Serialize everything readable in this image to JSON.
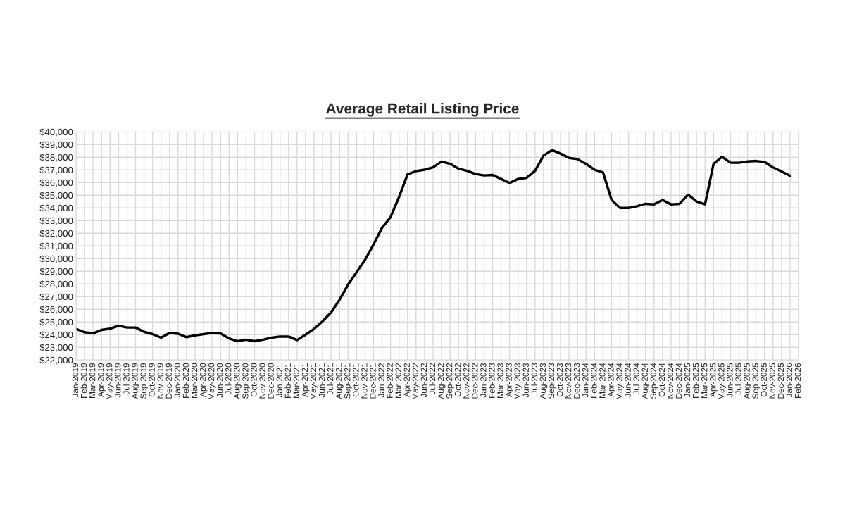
{
  "chart_data": {
    "type": "line",
    "title": "Average Retail Listing Price",
    "categories": [
      "Jan-2019",
      "Feb-2019",
      "Mar-2019",
      "Apr-2019",
      "May-2019",
      "Jun-2019",
      "Jul-2019",
      "Aug-2019",
      "Sep-2019",
      "Oct-2019",
      "Nov-2019",
      "Dec-2019",
      "Jan-2020",
      "Feb-2020",
      "Mar-2020",
      "Apr-2020",
      "May-2020",
      "Jun-2020",
      "Jul-2020",
      "Aug-2020",
      "Sep-2020",
      "Oct-2020",
      "Nov-2020",
      "Dec-2020",
      "Jan-2021",
      "Feb-2021",
      "Mar-2021",
      "Apr-2021",
      "May-2021",
      "Jun-2021",
      "Jul-2021",
      "Aug-2021",
      "Sep-2021",
      "Oct-2021",
      "Nov-2021",
      "Dec-2021",
      "Jan-2022",
      "Feb-2022",
      "Mar-2022",
      "Apr-2022",
      "May-2022",
      "Jun-2022",
      "Jul-2022",
      "Aug-2022",
      "Sep-2022",
      "Oct-2022",
      "Nov-2022",
      "Dec-2022",
      "Jan-2023",
      "Feb-2023",
      "Mar-2023",
      "Apr-2023",
      "May-2023",
      "Jun-2023",
      "Jul-2023",
      "Aug-2023",
      "Sep-2023",
      "Oct-2023",
      "Nov-2023",
      "Dec-2023",
      "Jan-2024",
      "Feb-2024",
      "Mar-2024",
      "Apr-2024",
      "May-2024",
      "Jun-2024",
      "Jul-2024",
      "Aug-2024",
      "Sep-2024",
      "Oct-2024",
      "Nov-2024",
      "Dec-2024",
      "Jan-2025",
      "Feb-2025",
      "Mar-2025",
      "Apr-2025",
      "May-2025",
      "Jun-2025",
      "Jul-2025",
      "Aug-2025",
      "Sep-2025",
      "Oct-2025",
      "Nov-2025",
      "Dec-2025",
      "Jan-2026",
      "Feb-2026"
    ],
    "series": [
      {
        "color": "#000000",
        "values": [
          24450,
          24190,
          24100,
          24370,
          24470,
          24700,
          24560,
          24560,
          24220,
          24040,
          23760,
          24130,
          24070,
          23800,
          23940,
          24040,
          24130,
          24090,
          23700,
          23480,
          23600,
          23480,
          23600,
          23760,
          23850,
          23850,
          23570,
          24000,
          24450,
          25050,
          25750,
          26750,
          27940,
          28920,
          29900,
          31120,
          32430,
          33270,
          34860,
          36640,
          36900,
          37010,
          37200,
          37660,
          37480,
          37100,
          36920,
          36670,
          36560,
          36600,
          36280,
          35960,
          36280,
          36370,
          36920,
          38130,
          38560,
          38280,
          37940,
          37850,
          37470,
          37000,
          36800,
          34640,
          34000,
          34000,
          34130,
          34320,
          34280,
          34620,
          34280,
          34320,
          35040,
          34510,
          34280,
          37470,
          38040,
          37560,
          37560,
          37660,
          37700,
          37620,
          37190,
          36870,
          36530,
          null
        ]
      }
    ],
    "ylim": [
      22000,
      40000
    ],
    "yticks": [
      {
        "value": 22000,
        "label": "$22,000"
      },
      {
        "value": 23000,
        "label": "$23,000"
      },
      {
        "value": 24000,
        "label": "$24,000"
      },
      {
        "value": 25000,
        "label": "$25,000"
      },
      {
        "value": 26000,
        "label": "$26,000"
      },
      {
        "value": 27000,
        "label": "$27,000"
      },
      {
        "value": 28000,
        "label": "$28,000"
      },
      {
        "value": 29000,
        "label": "$29,000"
      },
      {
        "value": 30000,
        "label": "$30,000"
      },
      {
        "value": 31000,
        "label": "$31,000"
      },
      {
        "value": 32000,
        "label": "$32,000"
      },
      {
        "value": 33000,
        "label": "$33,000"
      },
      {
        "value": 34000,
        "label": "$34,000"
      },
      {
        "value": 35000,
        "label": "$35,000"
      },
      {
        "value": 36000,
        "label": "$36,000"
      },
      {
        "value": 37000,
        "label": "$37,000"
      },
      {
        "value": 38000,
        "label": "$38,000"
      },
      {
        "value": 39000,
        "label": "$39,000"
      },
      {
        "value": 40000,
        "label": "$40,000"
      }
    ],
    "grid": true,
    "legend": false,
    "marker": "none",
    "line_style": "solid"
  }
}
